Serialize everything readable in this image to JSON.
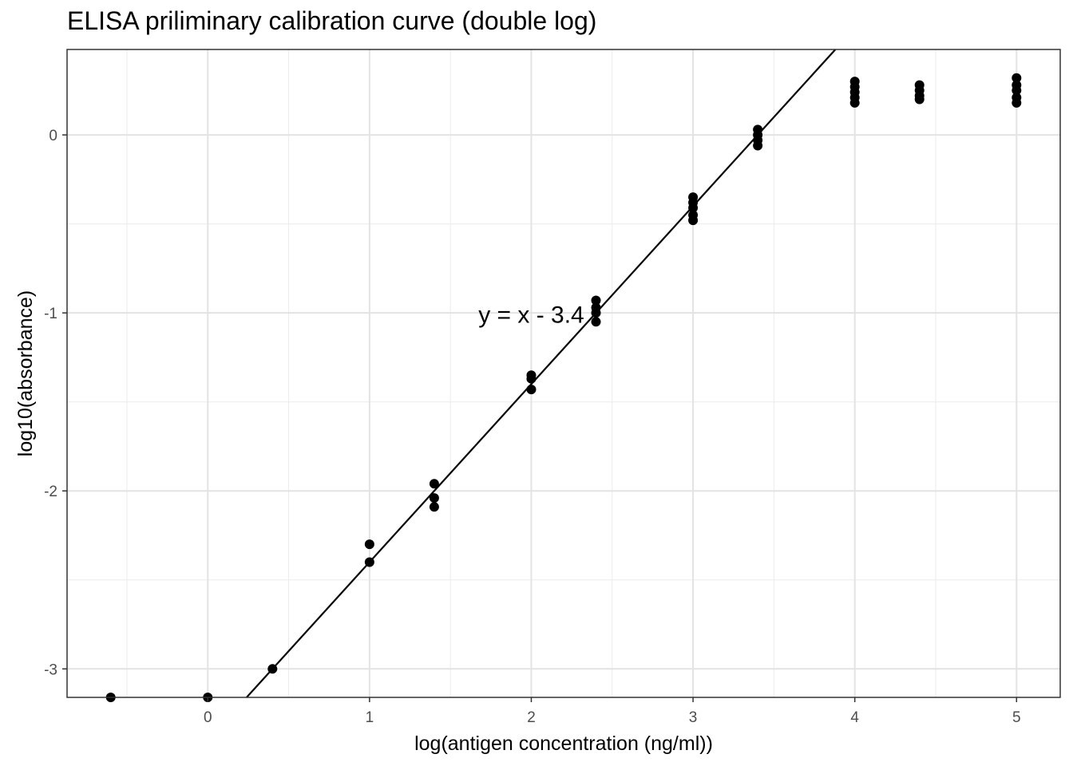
{
  "chart_data": {
    "type": "scatter",
    "title": "ELISA priliminary calibration curve (double log)",
    "xlabel": "log(antigen concentration (ng/ml))",
    "ylabel": "log10(absorbance)",
    "xlim": [
      -0.87,
      5.27
    ],
    "ylim": [
      -3.16,
      0.48
    ],
    "x_ticks": [
      0,
      1,
      2,
      3,
      4,
      5
    ],
    "y_ticks": [
      -3,
      -2,
      -1,
      0
    ],
    "x_tick_labels": [
      "0",
      "1",
      "2",
      "3",
      "4",
      "5"
    ],
    "y_tick_labels": [
      "-3",
      "-2",
      "-1",
      "0"
    ],
    "grid": true,
    "fit_line": {
      "slope": 1,
      "intercept": -3.4,
      "label": "y = x - 3.4",
      "label_x": 2.0,
      "label_y": -1.02
    },
    "points": [
      {
        "x": -0.6,
        "y": -3.16
      },
      {
        "x": 0.0,
        "y": -3.16
      },
      {
        "x": 0.4,
        "y": -3.0
      },
      {
        "x": 1.0,
        "y": -2.3
      },
      {
        "x": 1.0,
        "y": -2.4
      },
      {
        "x": 1.4,
        "y": -1.96
      },
      {
        "x": 1.4,
        "y": -2.04
      },
      {
        "x": 1.4,
        "y": -2.09
      },
      {
        "x": 2.0,
        "y": -1.35
      },
      {
        "x": 2.0,
        "y": -1.37
      },
      {
        "x": 2.0,
        "y": -1.43
      },
      {
        "x": 2.4,
        "y": -0.93
      },
      {
        "x": 2.4,
        "y": -0.97
      },
      {
        "x": 2.4,
        "y": -1.0
      },
      {
        "x": 2.4,
        "y": -1.05
      },
      {
        "x": 3.0,
        "y": -0.35
      },
      {
        "x": 3.0,
        "y": -0.38
      },
      {
        "x": 3.0,
        "y": -0.41
      },
      {
        "x": 3.0,
        "y": -0.45
      },
      {
        "x": 3.0,
        "y": -0.48
      },
      {
        "x": 3.4,
        "y": 0.03
      },
      {
        "x": 3.4,
        "y": 0.0
      },
      {
        "x": 3.4,
        "y": -0.03
      },
      {
        "x": 3.4,
        "y": -0.06
      },
      {
        "x": 4.0,
        "y": 0.3
      },
      {
        "x": 4.0,
        "y": 0.27
      },
      {
        "x": 4.0,
        "y": 0.24
      },
      {
        "x": 4.0,
        "y": 0.21
      },
      {
        "x": 4.0,
        "y": 0.18
      },
      {
        "x": 4.4,
        "y": 0.28
      },
      {
        "x": 4.4,
        "y": 0.25
      },
      {
        "x": 4.4,
        "y": 0.22
      },
      {
        "x": 4.4,
        "y": 0.2
      },
      {
        "x": 5.0,
        "y": 0.32
      },
      {
        "x": 5.0,
        "y": 0.28
      },
      {
        "x": 5.0,
        "y": 0.25
      },
      {
        "x": 5.0,
        "y": 0.21
      },
      {
        "x": 5.0,
        "y": 0.18
      }
    ]
  }
}
